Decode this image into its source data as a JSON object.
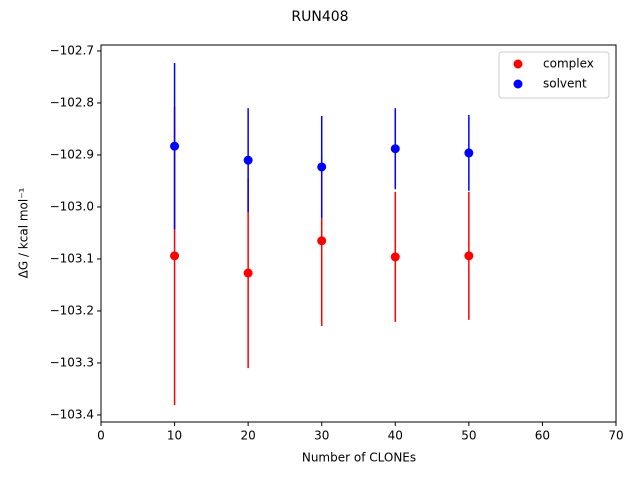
{
  "chart_data": {
    "type": "scatter",
    "title": "RUN408",
    "xlabel": "Number of CLONEs",
    "ylabel": "ΔG / kcal mol⁻¹",
    "x": [
      10,
      20,
      30,
      40,
      50
    ],
    "series": [
      {
        "name": "complex",
        "color": "#ff0000",
        "values": [
          -103.094,
          -103.127,
          -103.065,
          -103.096,
          -103.094
        ],
        "errors": [
          0.287,
          0.183,
          0.164,
          0.125,
          0.123
        ]
      },
      {
        "name": "solvent",
        "color": "#0000ff",
        "values": [
          -102.883,
          -102.91,
          -102.923,
          -102.888,
          -102.896
        ],
        "errors": [
          0.16,
          0.1,
          0.098,
          0.078,
          0.073
        ]
      }
    ],
    "xlim": [
      0,
      70
    ],
    "xticks": [
      0,
      10,
      20,
      30,
      40,
      50,
      60,
      70
    ],
    "ylim": [
      -103.4135,
      -102.6885
    ],
    "yticks": [
      {
        "value": -102.7,
        "label": "−102.7"
      },
      {
        "value": -102.8,
        "label": "−102.8"
      },
      {
        "value": -102.9,
        "label": "−102.9"
      },
      {
        "value": -103.0,
        "label": "−103.0"
      },
      {
        "value": -103.1,
        "label": "−103.1"
      },
      {
        "value": -103.2,
        "label": "−103.2"
      },
      {
        "value": -103.3,
        "label": "−103.3"
      },
      {
        "value": -103.4,
        "label": "−103.4"
      }
    ],
    "legend": "upper right"
  }
}
